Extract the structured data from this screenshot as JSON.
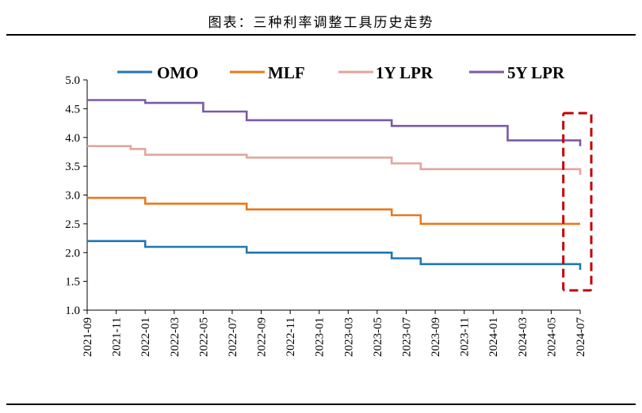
{
  "page": {
    "title": "图表：三种利率调整工具历史走势"
  },
  "chart_data": {
    "type": "line",
    "step": true,
    "title": "图表：三种利率调整工具历史走势",
    "xlabel": "",
    "ylabel": "",
    "ylim": [
      1.0,
      5.0
    ],
    "yticks": [
      1.0,
      1.5,
      2.0,
      2.5,
      3.0,
      3.5,
      4.0,
      4.5,
      5.0
    ],
    "yticks_text": [
      "1.0",
      "1.5",
      "2.0",
      "2.5",
      "3.0",
      "3.5",
      "4.0",
      "4.5",
      "5.0"
    ],
    "xrange": [
      "2021-09",
      "2024-07"
    ],
    "xticks": [
      "2021-09",
      "2021-11",
      "2022-01",
      "2022-03",
      "2022-05",
      "2022-07",
      "2022-09",
      "2022-11",
      "2023-01",
      "2023-03",
      "2023-05",
      "2023-07",
      "2023-09",
      "2023-11",
      "2024-01",
      "2024-03",
      "2024-05",
      "2024-07"
    ],
    "grid": false,
    "legend": "top",
    "highlight_box": {
      "from": "2024-06",
      "to": "2024-07",
      "color": "#c00000",
      "style": "dashed"
    },
    "series": [
      {
        "name": "OMO",
        "color": "#1f77b4",
        "x": [
          "2021-09",
          "2022-01",
          "2022-08",
          "2023-06",
          "2023-08",
          "2024-07"
        ],
        "values": [
          2.2,
          2.1,
          2.0,
          1.9,
          1.8,
          1.7
        ]
      },
      {
        "name": "MLF",
        "color": "#e8791a",
        "x": [
          "2021-09",
          "2022-01",
          "2022-08",
          "2023-06",
          "2023-08"
        ],
        "values": [
          2.95,
          2.85,
          2.75,
          2.65,
          2.5
        ]
      },
      {
        "name": "1Y LPR",
        "color": "#e2a59c",
        "x": [
          "2021-09",
          "2021-12",
          "2022-01",
          "2022-08",
          "2023-06",
          "2023-08",
          "2024-07"
        ],
        "values": [
          3.85,
          3.8,
          3.7,
          3.65,
          3.55,
          3.45,
          3.35
        ]
      },
      {
        "name": "5Y LPR",
        "color": "#7a5aa6",
        "x": [
          "2021-09",
          "2022-01",
          "2022-05",
          "2022-08",
          "2023-06",
          "2024-02",
          "2024-07"
        ],
        "values": [
          4.65,
          4.6,
          4.45,
          4.3,
          4.2,
          3.95,
          3.85
        ]
      }
    ]
  }
}
